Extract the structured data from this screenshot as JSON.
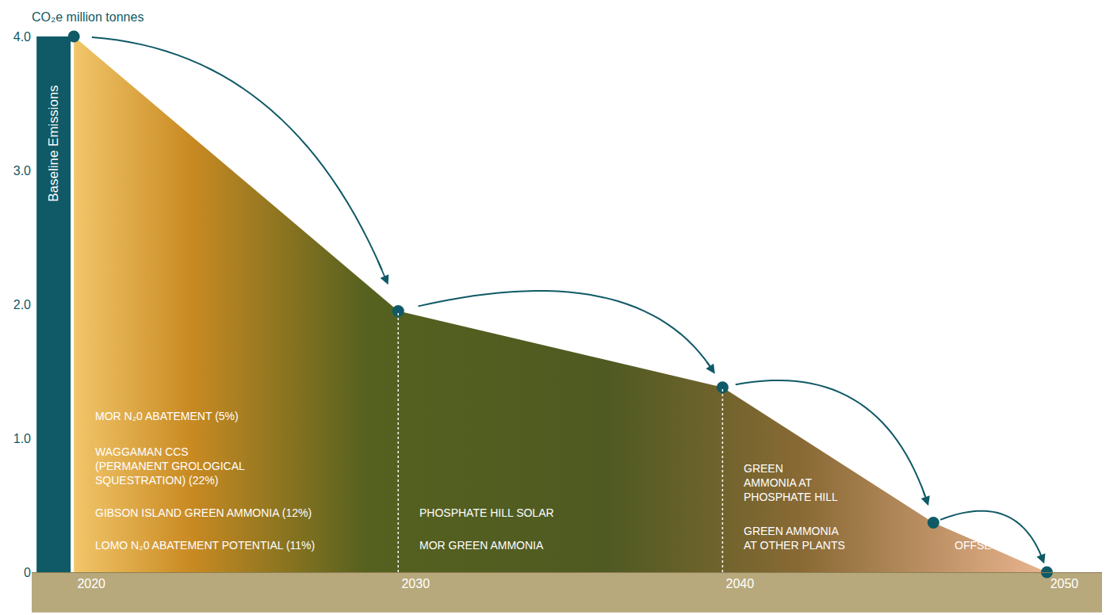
{
  "chart_data": {
    "type": "area",
    "ylabel": "CO₂e million tonnes",
    "x": [
      2020,
      2030,
      2040,
      2046.5,
      2050
    ],
    "values": [
      4.0,
      1.95,
      1.38,
      0.37,
      0
    ],
    "color": "#0f5a66",
    "xlim": [
      2018.7,
      2051.7
    ],
    "xticks": [
      2020,
      2030,
      2040,
      2050
    ],
    "ylim": [
      0,
      4
    ],
    "yticks": [
      0,
      {
        "value": 1,
        "label": "1.0"
      },
      {
        "value": 2,
        "label": "2.0"
      },
      {
        "value": 3,
        "label": "3.0"
      },
      {
        "value": 4,
        "label": "4.0"
      }
    ],
    "grid": false,
    "baseline": {
      "label": "Baseline Emissions",
      "value": 4.0
    },
    "segment_labels": [
      [
        "MOR N₂0 ABATEMENT (5%)",
        "WAGGAMAN CCS\n(PERMANENT GROLOGICAL\nSQUESTRATION) (22%)",
        "GIBSON ISLAND GREEN AMMONIA (12%)",
        "LOMO N₂0 ABATEMENT POTENTIAL (11%)"
      ],
      [
        "PHOSPHATE HILL SOLAR",
        "MOR GREEN AMMONIA"
      ],
      [
        "GREEN\nAMMONIA AT\nPHOSPHATE HILL",
        "GREEN AMMONIA\nAT OTHER PLANTS"
      ],
      [
        "OFFSETS"
      ]
    ]
  }
}
